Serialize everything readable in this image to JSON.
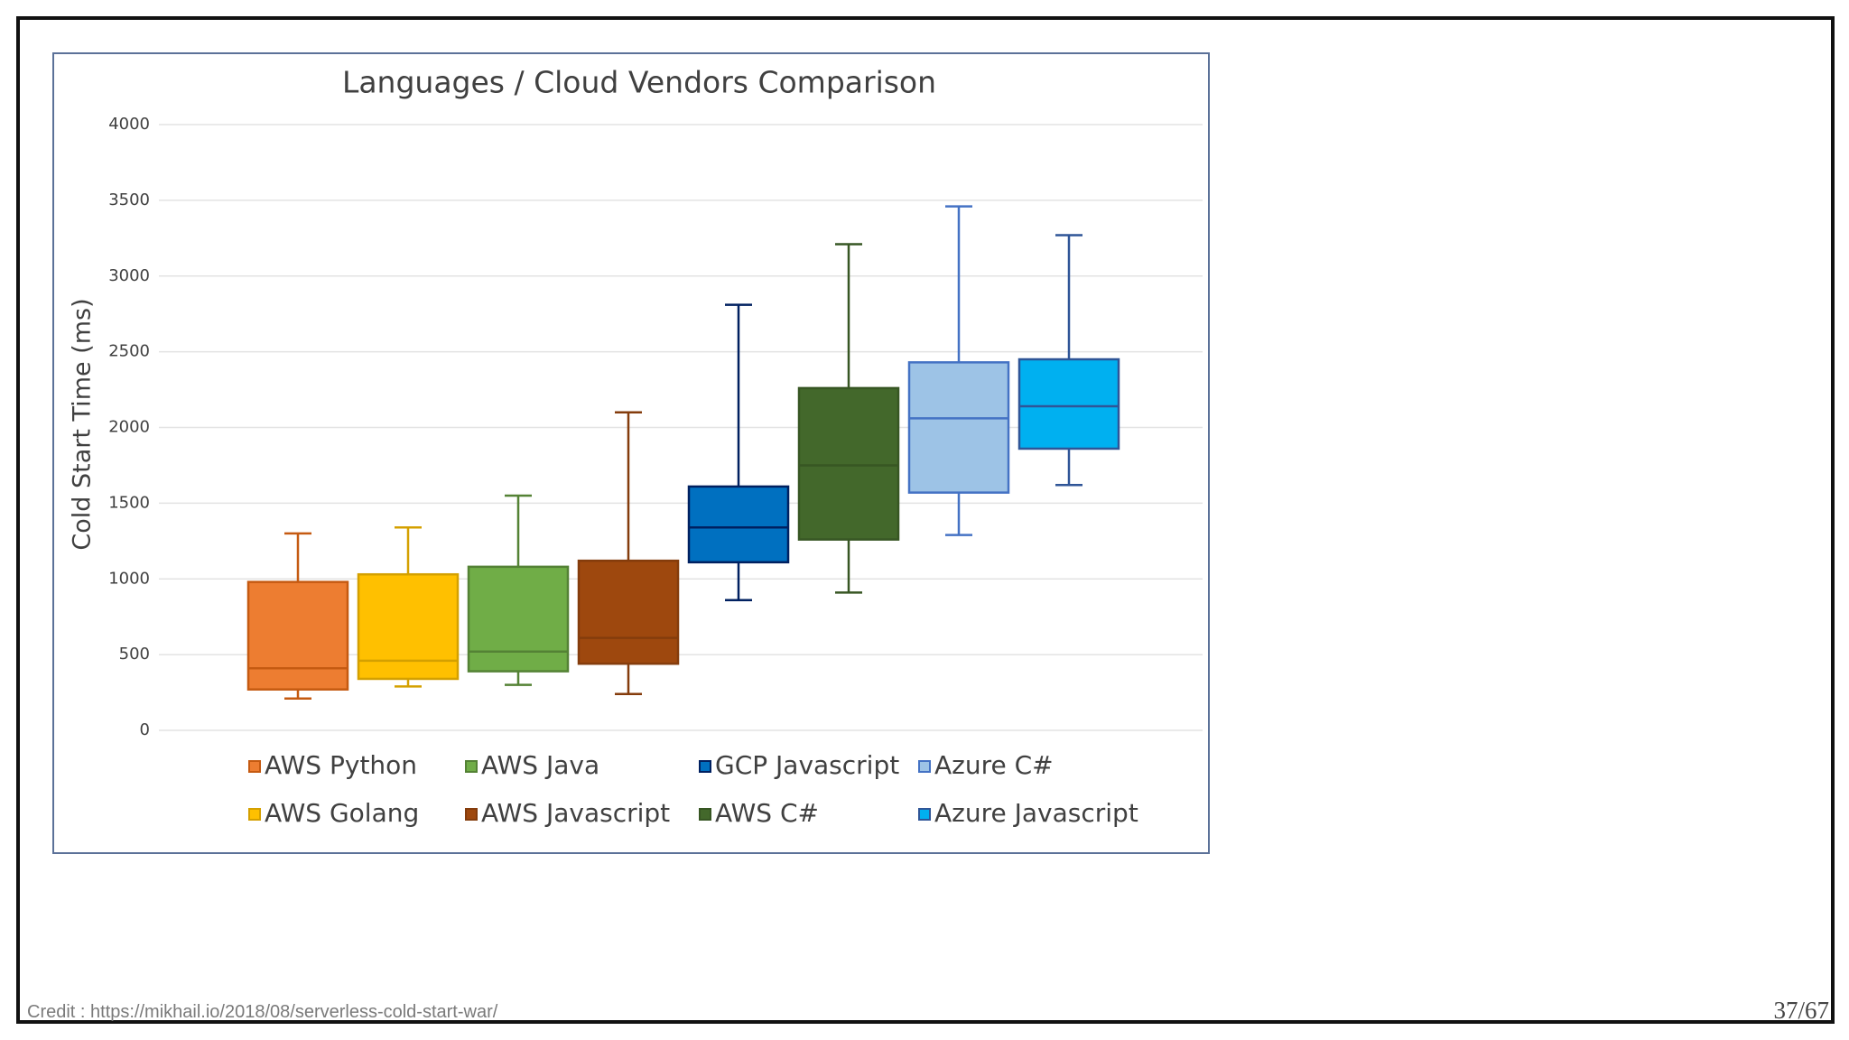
{
  "chart_data": {
    "type": "boxplot",
    "title": "Languages / Cloud Vendors Comparison",
    "ylabel": "Cold Start Time (ms)",
    "xlabel": "",
    "ylim": [
      0,
      4000
    ],
    "yticks": [
      0,
      500,
      1000,
      1500,
      2000,
      2500,
      3000,
      3500,
      4000
    ],
    "grid": true,
    "legend_position": "bottom",
    "series": [
      {
        "name": "AWS Python",
        "min": 210,
        "q1": 270,
        "median": 410,
        "q3": 980,
        "max": 1300,
        "fill": "#ed7d31",
        "stroke": "#c55a11"
      },
      {
        "name": "AWS Golang",
        "min": 290,
        "q1": 340,
        "median": 460,
        "q3": 1030,
        "max": 1340,
        "fill": "#ffc000",
        "stroke": "#d4a000"
      },
      {
        "name": "AWS Java",
        "min": 300,
        "q1": 390,
        "median": 520,
        "q3": 1080,
        "max": 1550,
        "fill": "#70ad47",
        "stroke": "#548235"
      },
      {
        "name": "AWS Javascript",
        "min": 240,
        "q1": 440,
        "median": 610,
        "q3": 1120,
        "max": 2100,
        "fill": "#9e480e",
        "stroke": "#843c0c"
      },
      {
        "name": "GCP Javascript",
        "min": 860,
        "q1": 1110,
        "median": 1340,
        "q3": 1610,
        "max": 2810,
        "fill": "#0070c0",
        "stroke": "#002060"
      },
      {
        "name": "AWS C#",
        "min": 910,
        "q1": 1260,
        "median": 1750,
        "q3": 2260,
        "max": 3210,
        "fill": "#43682b",
        "stroke": "#375623"
      },
      {
        "name": "Azure C#",
        "min": 1290,
        "q1": 1570,
        "median": 2060,
        "q3": 2430,
        "max": 3460,
        "fill": "#9dc3e6",
        "stroke": "#4472c4"
      },
      {
        "name": "Azure Javascript",
        "min": 1620,
        "q1": 1860,
        "median": 2140,
        "q3": 2450,
        "max": 3270,
        "fill": "#00b0f0",
        "stroke": "#2f5597"
      }
    ],
    "legend_order": [
      "AWS Python",
      "AWS Java",
      "GCP Javascript",
      "Azure C#",
      "AWS Golang",
      "AWS Javascript",
      "AWS C#",
      "Azure Javascript"
    ]
  },
  "footer": {
    "credit": "Credit : https://mikhail.io/2018/08/serverless-cold-start-war/",
    "page_number": "37/67"
  },
  "colors": {
    "frame_border": "#5b7198",
    "gridline": "#e3e3e3",
    "text": "#404040"
  }
}
